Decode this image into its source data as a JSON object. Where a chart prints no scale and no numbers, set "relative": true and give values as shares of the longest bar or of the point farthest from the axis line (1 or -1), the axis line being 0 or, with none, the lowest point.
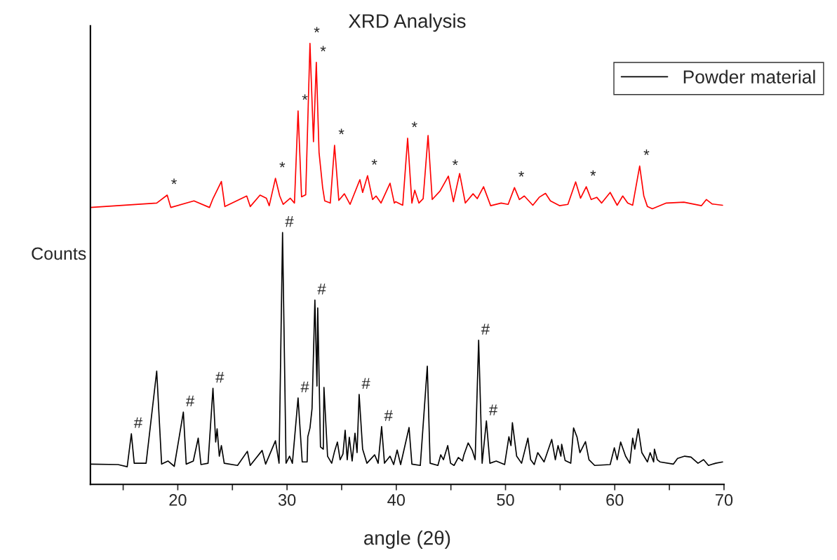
{
  "chart_data": {
    "type": "line",
    "title": "XRD Analysis",
    "xlabel": "angle (2θ)",
    "ylabel": "Counts",
    "relative": true,
    "xlim": [
      12,
      70
    ],
    "xticks": [
      {
        "value": 15,
        "label": null
      },
      20,
      {
        "value": 25,
        "label": null
      },
      30,
      {
        "value": 35,
        "label": null
      },
      40,
      {
        "value": 45,
        "label": null
      },
      50,
      {
        "value": 55,
        "label": null
      },
      60,
      {
        "value": 65,
        "label": null
      },
      70
    ],
    "grid": false,
    "legend": "top right",
    "marker": "none",
    "line_style": "solid",
    "series": [
      {
        "color": "#ff0000",
        "x": [
          12.0,
          18.07,
          19.03,
          19.36,
          21.48,
          22.9,
          23.22,
          23.99,
          24.31,
          26.31,
          26.63,
          27.53,
          28.11,
          28.37,
          28.94,
          29.33,
          29.65,
          30.3,
          30.68,
          31.01,
          31.33,
          31.71,
          32.1,
          32.42,
          32.68,
          32.93,
          33.26,
          33.45,
          33.96,
          34.35,
          34.74,
          35.25,
          35.77,
          36.67,
          36.92,
          37.37,
          37.83,
          38.15,
          38.6,
          39.43,
          39.82,
          39.95,
          40.59,
          41.04,
          41.43,
          41.69,
          42.07,
          42.46,
          42.91,
          43.29,
          44.0,
          44.77,
          45.23,
          45.8,
          46.32,
          47.03,
          47.41,
          47.99,
          48.64,
          49.6,
          50.24,
          50.82,
          51.27,
          51.72,
          52.5,
          53.08,
          53.66,
          54.11,
          54.94,
          55.71,
          56.42,
          56.87,
          57.39,
          57.84,
          58.35,
          58.8,
          59.58,
          60.22,
          60.73,
          61.18,
          61.64,
          62.28,
          62.66,
          62.99,
          63.44,
          64.72,
          66.33,
          67.94,
          68.39,
          68.91,
          69.87
        ],
        "values": [
          0.628,
          0.638,
          0.656,
          0.628,
          0.643,
          0.628,
          0.648,
          0.687,
          0.63,
          0.654,
          0.63,
          0.656,
          0.649,
          0.632,
          0.694,
          0.654,
          0.635,
          0.649,
          0.638,
          0.847,
          0.652,
          0.657,
          1.0,
          0.777,
          0.957,
          0.753,
          0.673,
          0.643,
          0.638,
          0.769,
          0.644,
          0.659,
          0.635,
          0.691,
          0.662,
          0.7,
          0.646,
          0.654,
          0.638,
          0.683,
          0.638,
          0.641,
          0.633,
          0.785,
          0.638,
          0.667,
          0.638,
          0.648,
          0.791,
          0.646,
          0.665,
          0.699,
          0.641,
          0.705,
          0.638,
          0.659,
          0.648,
          0.675,
          0.632,
          0.638,
          0.635,
          0.673,
          0.646,
          0.654,
          0.633,
          0.651,
          0.66,
          0.643,
          0.632,
          0.635,
          0.686,
          0.649,
          0.675,
          0.646,
          0.651,
          0.638,
          0.662,
          0.633,
          0.654,
          0.638,
          0.633,
          0.722,
          0.654,
          0.63,
          0.625,
          0.638,
          0.64,
          0.632,
          0.646,
          0.636,
          0.633
        ]
      },
      {
        "name": "Powder material",
        "color": "#000000",
        "x": [
          12.0,
          14.53,
          15.37,
          15.75,
          16.01,
          17.1,
          18.07,
          18.52,
          19.1,
          19.68,
          20.51,
          20.77,
          21.42,
          21.87,
          22.12,
          22.77,
          23.22,
          23.47,
          23.6,
          23.8,
          23.99,
          24.25,
          25.47,
          26.37,
          26.63,
          27.14,
          27.72,
          28.04,
          28.94,
          29.27,
          29.59,
          29.91,
          30.23,
          30.49,
          31.01,
          31.39,
          31.84,
          31.9,
          32.1,
          32.29,
          32.55,
          32.74,
          32.81,
          33.06,
          33.32,
          33.38,
          33.71,
          34.09,
          34.35,
          34.61,
          34.86,
          35.12,
          35.32,
          35.51,
          35.7,
          35.96,
          36.22,
          36.41,
          36.6,
          36.92,
          37.31,
          38.02,
          38.34,
          38.66,
          38.92,
          39.43,
          39.76,
          40.08,
          40.4,
          41.17,
          41.43,
          42.2,
          42.84,
          43.1,
          43.81,
          44.07,
          44.32,
          44.71,
          44.97,
          45.29,
          45.68,
          46.06,
          46.19,
          46.58,
          46.96,
          47.22,
          47.54,
          47.86,
          48.25,
          48.57,
          49.15,
          49.92,
          50.31,
          50.5,
          50.63,
          51.02,
          51.47,
          52.05,
          52.3,
          52.63,
          52.95,
          53.53,
          54.23,
          54.56,
          54.81,
          55.07,
          55.14,
          55.46,
          55.97,
          56.23,
          56.55,
          56.81,
          57.32,
          57.64,
          58.16,
          59.58,
          59.96,
          60.22,
          60.54,
          60.99,
          61.38,
          61.64,
          61.83,
          62.15,
          62.48,
          62.99,
          63.24,
          63.56,
          63.63,
          63.89,
          64.14,
          65.37,
          65.75,
          66.4,
          66.98,
          67.62,
          68.13,
          68.58,
          69.23,
          69.87
        ],
        "values": [
          0.046,
          0.045,
          0.04,
          0.115,
          0.048,
          0.048,
          0.257,
          0.046,
          0.053,
          0.041,
          0.164,
          0.046,
          0.053,
          0.105,
          0.045,
          0.048,
          0.218,
          0.096,
          0.126,
          0.064,
          0.088,
          0.048,
          0.043,
          0.075,
          0.043,
          0.059,
          0.077,
          0.046,
          0.099,
          0.048,
          0.571,
          0.048,
          0.064,
          0.048,
          0.196,
          0.051,
          0.051,
          0.108,
          0.128,
          0.172,
          0.418,
          0.223,
          0.4,
          0.085,
          0.08,
          0.22,
          0.064,
          0.048,
          0.075,
          0.096,
          0.056,
          0.069,
          0.123,
          0.056,
          0.107,
          0.053,
          0.116,
          0.072,
          0.204,
          0.08,
          0.048,
          0.067,
          0.048,
          0.131,
          0.048,
          0.064,
          0.045,
          0.078,
          0.045,
          0.129,
          0.046,
          0.043,
          0.268,
          0.048,
          0.043,
          0.067,
          0.056,
          0.088,
          0.048,
          0.043,
          0.061,
          0.053,
          0.067,
          0.094,
          0.077,
          0.056,
          0.327,
          0.048,
          0.144,
          0.048,
          0.053,
          0.045,
          0.108,
          0.088,
          0.14,
          0.064,
          0.048,
          0.105,
          0.056,
          0.045,
          0.072,
          0.051,
          0.102,
          0.056,
          0.088,
          0.064,
          0.091,
          0.054,
          0.048,
          0.128,
          0.107,
          0.072,
          0.097,
          0.056,
          0.043,
          0.045,
          0.083,
          0.056,
          0.096,
          0.064,
          0.048,
          0.105,
          0.08,
          0.126,
          0.072,
          0.051,
          0.072,
          0.051,
          0.08,
          0.056,
          0.051,
          0.046,
          0.059,
          0.064,
          0.062,
          0.048,
          0.056,
          0.043,
          0.048,
          0.051
        ]
      }
    ],
    "annotations": [
      {
        "text": "*",
        "x": 19.03,
        "y": 0.656
      },
      {
        "text": "*",
        "x": 28.94,
        "y": 0.694
      },
      {
        "text": "*",
        "x": 31.01,
        "y": 0.847
      },
      {
        "text": "*",
        "x": 32.1,
        "y": 1.0
      },
      {
        "text": "*",
        "x": 32.68,
        "y": 0.957
      },
      {
        "text": "*",
        "x": 34.35,
        "y": 0.769
      },
      {
        "text": "*",
        "x": 37.37,
        "y": 0.7
      },
      {
        "text": "*",
        "x": 41.04,
        "y": 0.785
      },
      {
        "text": "*",
        "x": 44.77,
        "y": 0.699
      },
      {
        "text": "*",
        "x": 50.82,
        "y": 0.673
      },
      {
        "text": "*",
        "x": 57.39,
        "y": 0.675
      },
      {
        "text": "*",
        "x": 62.28,
        "y": 0.722
      },
      {
        "text": "#",
        "x": 15.75,
        "y": 0.115
      },
      {
        "text": "#",
        "x": 20.51,
        "y": 0.164
      },
      {
        "text": "#",
        "x": 23.22,
        "y": 0.218
      },
      {
        "text": "#",
        "x": 29.59,
        "y": 0.571
      },
      {
        "text": "#",
        "x": 31.01,
        "y": 0.196
      },
      {
        "text": "#",
        "x": 32.55,
        "y": 0.418
      },
      {
        "text": "#",
        "x": 36.6,
        "y": 0.204
      },
      {
        "text": "#",
        "x": 38.66,
        "y": 0.131
      },
      {
        "text": "#",
        "x": 47.54,
        "y": 0.327
      },
      {
        "text": "#",
        "x": 48.25,
        "y": 0.144
      }
    ]
  }
}
